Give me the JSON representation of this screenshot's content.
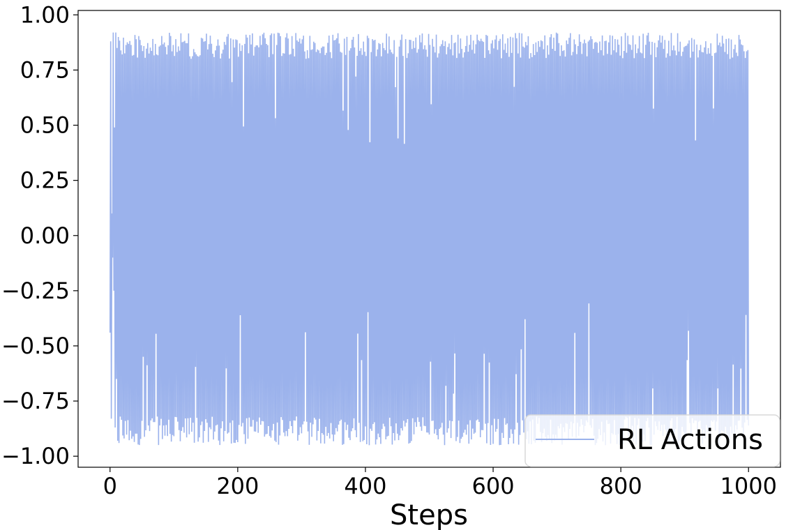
{
  "chart_data": {
    "type": "line",
    "title": "",
    "xlabel": "Steps",
    "ylabel": "",
    "xlim": [
      -50,
      1050
    ],
    "ylim": [
      -1.05,
      1.02
    ],
    "xticks": [
      0,
      200,
      400,
      600,
      800,
      1000
    ],
    "xtick_labels": [
      "0",
      "200",
      "400",
      "600",
      "800",
      "1000"
    ],
    "yticks": [
      -1.0,
      -0.75,
      -0.5,
      -0.25,
      0.0,
      0.25,
      0.5,
      0.75,
      1.0
    ],
    "ytick_labels": [
      "−1.00",
      "−0.75",
      "−0.50",
      "−0.25",
      "0.00",
      "0.25",
      "0.50",
      "0.75",
      "1.00"
    ],
    "grid": false,
    "legend": {
      "position": "bottom-right",
      "entries": [
        "RL Actions"
      ]
    },
    "series": [
      {
        "name": "RL Actions",
        "color": "#9bb2ec",
        "x_range": [
          0,
          1000
        ],
        "num_points": 1001,
        "pattern": "oscillates between about -0.95 and 0.92 at nearly every step",
        "y_max_typical": 0.92,
        "y_min_typical": -0.95,
        "sample_start": [
          [
            0,
            -0.44
          ],
          [
            1,
            0.88
          ],
          [
            2,
            -0.83
          ],
          [
            3,
            0.1
          ],
          [
            4,
            -0.1
          ],
          [
            5,
            0.92
          ],
          [
            6,
            -0.25
          ],
          [
            7,
            0.49
          ],
          [
            8,
            -0.87
          ],
          [
            9,
            0.92
          ],
          [
            10,
            -0.65
          ],
          [
            11,
            0.85
          ],
          [
            12,
            -0.93
          ],
          [
            13,
            0.9
          ],
          [
            14,
            -0.94
          ]
        ]
      }
    ]
  }
}
